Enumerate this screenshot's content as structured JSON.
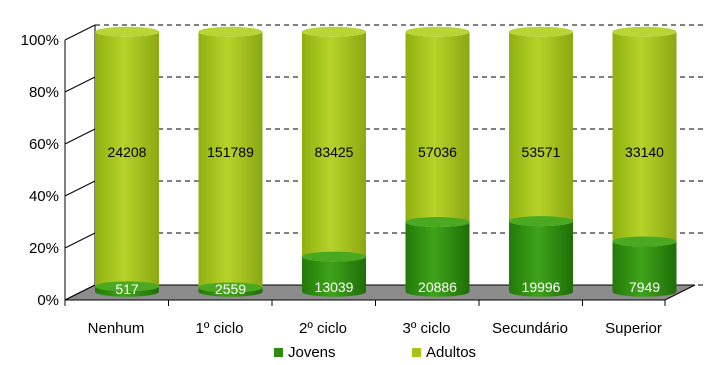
{
  "chart_data": {
    "type": "bar",
    "stacked": true,
    "normalized": true,
    "style": "3d-cylinder",
    "categories": [
      "Nenhum",
      "1º ciclo",
      "2º ciclo",
      "3º ciclo",
      "Secundário",
      "Superior"
    ],
    "series": [
      {
        "name": "Jovens",
        "color": "#2e8b0f",
        "values": [
          517,
          2559,
          13039,
          20886,
          19996,
          7949
        ]
      },
      {
        "name": "Adultos",
        "color": "#a4c41a",
        "values": [
          24208,
          151789,
          83425,
          57036,
          53571,
          33140
        ]
      }
    ],
    "yticks": [
      "0%",
      "20%",
      "40%",
      "60%",
      "80%",
      "100%"
    ],
    "ylim": [
      0,
      100
    ],
    "grid": true,
    "legend_position": "bottom"
  }
}
